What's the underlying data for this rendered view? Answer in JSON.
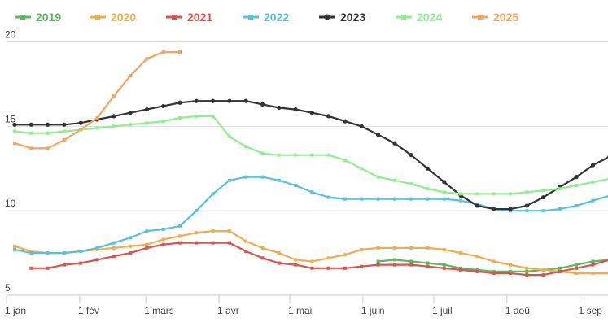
{
  "chart_data": {
    "type": "line",
    "title": "",
    "xlabel": "",
    "ylabel": "",
    "ylim": [
      5,
      22
    ],
    "grid": true,
    "legend_position": "top",
    "y_ticks": [
      5,
      10,
      15,
      20
    ],
    "x_ticks": [
      {
        "label": "1 jan",
        "week": 0
      },
      {
        "label": "1 fév",
        "week": 4.43
      },
      {
        "label": "1 mars",
        "week": 8.43
      },
      {
        "label": "1 avr",
        "week": 12.86
      },
      {
        "label": "1 mai",
        "week": 17.14
      },
      {
        "label": "1 juin",
        "week": 21.57
      },
      {
        "label": "1 juil",
        "week": 25.86
      },
      {
        "label": "1 aoû",
        "week": 30.29
      },
      {
        "label": "1 sep",
        "week": 34.71
      }
    ],
    "series": [
      {
        "name": "2019",
        "color": "#5cb85c",
        "weeks": [
          22,
          23,
          24,
          25,
          26,
          27,
          28,
          29,
          30,
          31,
          32,
          33,
          34,
          35,
          36
        ],
        "values": [
          7.0,
          7.1,
          7.0,
          6.9,
          6.8,
          6.6,
          6.5,
          6.4,
          6.4,
          6.4,
          6.5,
          6.6,
          6.8,
          7.0,
          7.1
        ]
      },
      {
        "name": "2020",
        "color": "#f0ad4e",
        "weeks": [
          0,
          1,
          2,
          3,
          4,
          5,
          6,
          7,
          8,
          9,
          10,
          11,
          12,
          13,
          14,
          15,
          16,
          17,
          18,
          19,
          20,
          21,
          22,
          23,
          24,
          25,
          26,
          27,
          28,
          29,
          30,
          31,
          32,
          33,
          34,
          35,
          36
        ],
        "values": [
          7.9,
          7.6,
          7.5,
          7.5,
          7.6,
          7.7,
          7.8,
          7.9,
          8.0,
          8.3,
          8.5,
          8.7,
          8.8,
          8.8,
          8.2,
          7.8,
          7.5,
          7.1,
          7.0,
          7.2,
          7.4,
          7.7,
          7.8,
          7.8,
          7.8,
          7.8,
          7.7,
          7.5,
          7.3,
          7.0,
          6.8,
          6.6,
          6.5,
          6.4,
          6.3,
          6.3,
          6.3
        ]
      },
      {
        "name": "2021",
        "color": "#d9534f",
        "weeks": [
          1,
          2,
          3,
          4,
          5,
          6,
          7,
          8,
          9,
          10,
          11,
          12,
          13,
          14,
          15,
          16,
          17,
          18,
          19,
          20,
          21,
          22,
          23,
          24,
          25,
          26,
          27,
          28,
          29,
          30,
          31,
          32,
          33,
          34,
          35,
          36
        ],
        "values": [
          6.6,
          6.6,
          6.8,
          6.9,
          7.1,
          7.3,
          7.5,
          7.8,
          8.0,
          8.1,
          8.1,
          8.1,
          8.1,
          7.6,
          7.2,
          6.9,
          6.8,
          6.6,
          6.6,
          6.6,
          6.7,
          6.8,
          6.8,
          6.8,
          6.7,
          6.6,
          6.5,
          6.4,
          6.3,
          6.3,
          6.2,
          6.2,
          6.4,
          6.6,
          6.8,
          7.1
        ]
      },
      {
        "name": "2022",
        "color": "#5bc0de",
        "weeks": [
          0,
          1,
          2,
          3,
          4,
          5,
          6,
          7,
          8,
          9,
          10,
          11,
          12,
          13,
          14,
          15,
          16,
          17,
          18,
          19,
          20,
          21,
          22,
          23,
          24,
          25,
          26,
          27,
          28,
          29,
          30,
          31,
          32,
          33,
          34,
          35,
          36
        ],
        "values": [
          7.7,
          7.5,
          7.5,
          7.5,
          7.6,
          7.8,
          8.1,
          8.4,
          8.8,
          8.9,
          9.1,
          10.0,
          11.0,
          11.8,
          12.0,
          12.0,
          11.8,
          11.5,
          11.1,
          10.8,
          10.7,
          10.7,
          10.7,
          10.7,
          10.7,
          10.7,
          10.7,
          10.6,
          10.4,
          10.1,
          10.0,
          10.0,
          10.0,
          10.1,
          10.3,
          10.6,
          10.9
        ]
      },
      {
        "name": "2023",
        "color": "#333333",
        "weeks": [
          0,
          1,
          2,
          3,
          4,
          5,
          6,
          7,
          8,
          9,
          10,
          11,
          12,
          13,
          14,
          15,
          16,
          17,
          18,
          19,
          20,
          21,
          22,
          23,
          24,
          25,
          26,
          27,
          28,
          29,
          30,
          31,
          32,
          33,
          34,
          35,
          36
        ],
        "values": [
          15.1,
          15.1,
          15.1,
          15.1,
          15.2,
          15.4,
          15.6,
          15.8,
          16.0,
          16.2,
          16.4,
          16.5,
          16.5,
          16.5,
          16.5,
          16.3,
          16.1,
          16.0,
          15.8,
          15.6,
          15.3,
          15.0,
          14.5,
          14.0,
          13.3,
          12.5,
          11.7,
          10.9,
          10.3,
          10.1,
          10.1,
          10.3,
          10.8,
          11.4,
          12.0,
          12.7,
          13.2
        ]
      },
      {
        "name": "2024",
        "color": "#90ee90",
        "weeks": [
          0,
          1,
          2,
          3,
          4,
          5,
          6,
          7,
          8,
          9,
          10,
          11,
          12,
          13,
          14,
          15,
          16,
          17,
          18,
          19,
          20,
          21,
          22,
          23,
          24,
          25,
          26,
          27,
          28,
          29,
          30,
          31,
          32,
          33,
          34,
          35,
          36
        ],
        "values": [
          14.7,
          14.6,
          14.6,
          14.7,
          14.8,
          14.9,
          15.0,
          15.1,
          15.2,
          15.3,
          15.5,
          15.6,
          15.6,
          14.4,
          13.8,
          13.4,
          13.3,
          13.3,
          13.3,
          13.3,
          13.0,
          12.5,
          12.0,
          11.8,
          11.6,
          11.3,
          11.1,
          11.0,
          11.0,
          11.0,
          11.0,
          11.1,
          11.2,
          11.3,
          11.5,
          11.7,
          11.9
        ]
      },
      {
        "name": "2025",
        "color": "#f4a460",
        "weeks": [
          0,
          1,
          2,
          3,
          4,
          5,
          6,
          7,
          8,
          9,
          10
        ],
        "values": [
          14.0,
          13.7,
          13.7,
          14.2,
          14.8,
          15.5,
          16.8,
          18.0,
          19.0,
          19.4,
          19.4
        ]
      }
    ]
  }
}
